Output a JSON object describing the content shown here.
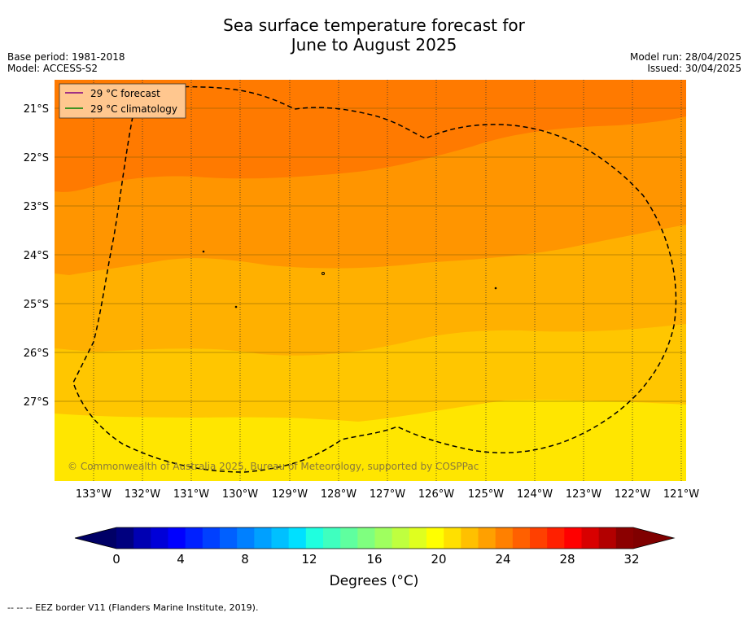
{
  "title_line1": "Sea surface temperature forecast for",
  "title_line2": "June to August 2025",
  "base_period": "Base period: 1981-2018",
  "model": "Model: ACCESS-S2",
  "model_run": "Model run: 28/04/2025",
  "issued": "Issued: 30/04/2025",
  "legend": {
    "forecast_label": "29 °C  forecast",
    "climatology_label": "29 °C  climatology",
    "forecast_color": "#800080",
    "climatology_color": "#008000"
  },
  "copyright": "© Commonwealth of Australia 2025, Bureau of Meteorology, supported by COSPPac",
  "lat_labels": [
    "21°S",
    "22°S",
    "23°S",
    "24°S",
    "25°S",
    "26°S",
    "27°S"
  ],
  "lon_labels": [
    "133°W",
    "132°W",
    "131°W",
    "130°W",
    "129°W",
    "128°W",
    "127°W",
    "126°W",
    "125°W",
    "124°W",
    "123°W",
    "122°W",
    "121°W"
  ],
  "colorbar": {
    "ticks": [
      "0",
      "4",
      "8",
      "12",
      "16",
      "20",
      "24",
      "28",
      "32"
    ],
    "label": "Degrees (°C)",
    "colors": [
      "#00007f",
      "#0000b2",
      "#0000d8",
      "#0000ff",
      "#0020ff",
      "#0040ff",
      "#0060ff",
      "#0080ff",
      "#00a0ff",
      "#00c0ff",
      "#00e0ff",
      "#1fffdf",
      "#3fffbf",
      "#5fff9f",
      "#7fff7f",
      "#9fff5f",
      "#bfff3f",
      "#dfff1f",
      "#ffff00",
      "#ffe000",
      "#ffc000",
      "#ffa000",
      "#ff8000",
      "#ff6000",
      "#ff4000",
      "#ff2000",
      "#ff0000",
      "#d80000",
      "#b20000",
      "#8b0000"
    ],
    "under_color": "#000066",
    "over_color": "#800000"
  },
  "footnote": "--  --  -- EEZ border V11 (Flanders Marine Institute, 2019)."
}
